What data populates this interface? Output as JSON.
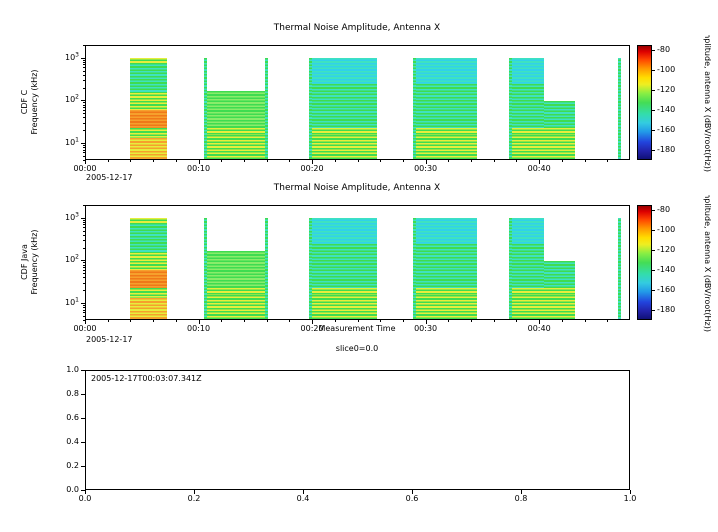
{
  "figure": {
    "bg": "#ffffff"
  },
  "colors": {
    "green": "#3fdc50",
    "green2": "#8aec6a",
    "cyan": "#3ee2c0",
    "cyan2": "#30d2ea",
    "yellow": "#e6ee3c",
    "orange": "#f6a02c",
    "orange2": "#f07818"
  },
  "chart_data": [
    {
      "id": "cdf-c",
      "type": "heatmap",
      "title": "Thermal Noise Amplitude, Antenna X",
      "ylabel": [
        "CDF C",
        "Frequency (kHz)"
      ],
      "y_scale": "log",
      "y_range_kHz": [
        4,
        2000
      ],
      "y_ticks": [
        {
          "mant": "10",
          "sup": "3",
          "exp": 3
        },
        {
          "mant": "10",
          "sup": "2",
          "exp": 2
        },
        {
          "mant": "10",
          "sup": "1",
          "exp": 1
        }
      ],
      "x_range_min": [
        0,
        48
      ],
      "x_ticks_min": [
        0,
        10,
        20,
        30,
        40
      ],
      "x_tick_labels": [
        "00:00",
        "00:10",
        "00:20",
        "00:30",
        "00:40"
      ],
      "x_date": "2005-12-17",
      "colorbar": {
        "label": "Amplitude, antenna X (dBV/root(Hz))",
        "ticks": [
          -80,
          -100,
          -120,
          -140,
          -160,
          -180
        ],
        "vmax": -75,
        "vmin": -190,
        "gradient_stops": [
          "#990000 0%",
          "#dd0000 5%",
          "#ff4400 12%",
          "#ff9900 20%",
          "#ffdd00 28%",
          "#eeee22 34%",
          "#88ee44 42%",
          "#44dd55 50%",
          "#33ddaa 60%",
          "#33cce0 68%",
          "#2299e8 76%",
          "#2244dd 85%",
          "#2222aa 93%",
          "#111177 100%"
        ]
      },
      "segments": [
        {
          "t0": 3.9,
          "t1": 7.15,
          "f0": 800,
          "f1": 1050,
          "c1": "yellow",
          "c2": "green"
        },
        {
          "t0": 3.9,
          "t1": 7.15,
          "f0": 150,
          "f1": 800,
          "c1": "green",
          "c2": "cyan"
        },
        {
          "t0": 3.9,
          "t1": 7.15,
          "f0": 60,
          "f1": 150,
          "c1": "yellow",
          "c2": "green"
        },
        {
          "t0": 3.9,
          "t1": 7.15,
          "f0": 22,
          "f1": 60,
          "c1": "orange",
          "c2": "orange2"
        },
        {
          "t0": 3.9,
          "t1": 7.15,
          "f0": 13,
          "f1": 22,
          "c1": "green",
          "c2": "yellow"
        },
        {
          "t0": 3.9,
          "t1": 7.15,
          "f0": 4,
          "f1": 13,
          "c1": "orange",
          "c2": "yellow"
        },
        {
          "t0": 10.4,
          "t1": 10.7,
          "f0": 4,
          "f1": 1050,
          "c1": "green",
          "c2": "cyan"
        },
        {
          "t0": 10.7,
          "t1": 16.0,
          "f0": 22,
          "f1": 170,
          "c1": "green",
          "c2": "green2"
        },
        {
          "t0": 10.7,
          "t1": 16.0,
          "f0": 15,
          "f1": 22,
          "c1": "yellow",
          "c2": "green"
        },
        {
          "t0": 10.7,
          "t1": 16.0,
          "f0": 4,
          "f1": 15,
          "c1": "green",
          "c2": "yellow"
        },
        {
          "t0": 15.8,
          "t1": 16.1,
          "f0": 4,
          "f1": 1050,
          "c1": "green",
          "c2": "cyan"
        },
        {
          "t0": 19.7,
          "t1": 25.7,
          "f0": 250,
          "f1": 1050,
          "c1": "cyan",
          "c2": "cyan2"
        },
        {
          "t0": 19.7,
          "t1": 25.7,
          "f0": 22,
          "f1": 250,
          "c1": "green",
          "c2": "cyan"
        },
        {
          "t0": 19.7,
          "t1": 25.7,
          "f0": 15,
          "f1": 22,
          "c1": "yellow",
          "c2": "green"
        },
        {
          "t0": 19.7,
          "t1": 25.7,
          "f0": 4,
          "f1": 15,
          "c1": "green",
          "c2": "yellow"
        },
        {
          "t0": 19.7,
          "t1": 20.0,
          "f0": 4,
          "f1": 1050,
          "c1": "green",
          "c2": "cyan"
        },
        {
          "t0": 28.9,
          "t1": 34.6,
          "f0": 250,
          "f1": 1050,
          "c1": "cyan",
          "c2": "cyan2"
        },
        {
          "t0": 28.9,
          "t1": 34.6,
          "f0": 22,
          "f1": 250,
          "c1": "green",
          "c2": "cyan"
        },
        {
          "t0": 28.9,
          "t1": 34.6,
          "f0": 15,
          "f1": 22,
          "c1": "yellow",
          "c2": "green"
        },
        {
          "t0": 28.9,
          "t1": 34.6,
          "f0": 4,
          "f1": 15,
          "c1": "green",
          "c2": "yellow"
        },
        {
          "t0": 28.9,
          "t1": 29.2,
          "f0": 4,
          "f1": 1050,
          "c1": "green",
          "c2": "cyan"
        },
        {
          "t0": 37.4,
          "t1": 40.5,
          "f0": 250,
          "f1": 1050,
          "c1": "cyan",
          "c2": "cyan2"
        },
        {
          "t0": 37.4,
          "t1": 40.5,
          "f0": 22,
          "f1": 250,
          "c1": "green",
          "c2": "cyan"
        },
        {
          "t0": 40.5,
          "t1": 43.2,
          "f0": 22,
          "f1": 95,
          "c1": "green",
          "c2": "cyan"
        },
        {
          "t0": 37.4,
          "t1": 43.2,
          "f0": 15,
          "f1": 22,
          "c1": "yellow",
          "c2": "green"
        },
        {
          "t0": 37.4,
          "t1": 43.2,
          "f0": 4,
          "f1": 15,
          "c1": "green",
          "c2": "yellow"
        },
        {
          "t0": 37.4,
          "t1": 37.7,
          "f0": 4,
          "f1": 1050,
          "c1": "green",
          "c2": "cyan"
        },
        {
          "t0": 47.0,
          "t1": 47.3,
          "f0": 4,
          "f1": 1050,
          "c1": "cyan",
          "c2": "green"
        }
      ]
    },
    {
      "id": "cdf-java",
      "type": "heatmap",
      "title": "Thermal Noise Amplitude, Antenna X",
      "ylabel": [
        "CDF Java",
        "Frequency (kHz)"
      ],
      "y_scale": "log",
      "y_range_kHz": [
        4,
        2000
      ],
      "y_ticks": [
        {
          "mant": "10",
          "sup": "3",
          "exp": 3
        },
        {
          "mant": "10",
          "sup": "2",
          "exp": 2
        },
        {
          "mant": "10",
          "sup": "1",
          "exp": 1
        }
      ],
      "x_range_min": [
        0,
        48
      ],
      "x_ticks_min": [
        0,
        10,
        20,
        30,
        40
      ],
      "x_tick_labels": [
        "00:00",
        "00:10",
        "00:20",
        "00:30",
        "00:40"
      ],
      "x_date": "2005-12-17",
      "xlabel": "Measurement Time",
      "xlabel_sub": "slice0=0.0",
      "colorbar": {
        "label": "Amplitude, antenna X (dBV/root(Hz))",
        "ticks": [
          -80,
          -100,
          -120,
          -140,
          -160,
          -180
        ],
        "vmax": -75,
        "vmin": -190,
        "gradient_stops": [
          "#990000 0%",
          "#dd0000 5%",
          "#ff4400 12%",
          "#ff9900 20%",
          "#ffdd00 28%",
          "#eeee22 34%",
          "#88ee44 42%",
          "#44dd55 50%",
          "#33ddaa 60%",
          "#33cce0 68%",
          "#2299e8 76%",
          "#2244dd 85%",
          "#2222aa 93%",
          "#111177 100%"
        ]
      },
      "segments_ref": 0
    },
    {
      "id": "slice-panel",
      "type": "scatter",
      "title": "",
      "annotation": "2005-12-17T00:03:07.341Z",
      "xlim": [
        0,
        1
      ],
      "ylim": [
        0,
        1
      ],
      "x_ticks": [
        "0.0",
        "0.2",
        "0.4",
        "0.6",
        "0.8",
        "1.0"
      ],
      "y_ticks": [
        "1.0",
        "0.8",
        "0.6",
        "0.4",
        "0.2",
        "0.0"
      ],
      "series": []
    }
  ]
}
